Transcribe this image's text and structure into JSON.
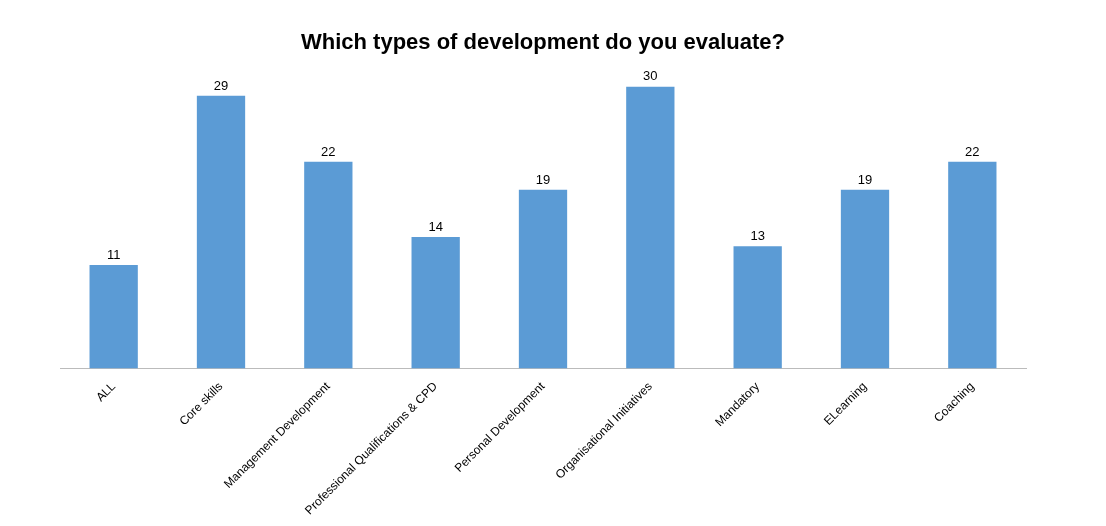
{
  "chart_data": {
    "type": "bar",
    "title": "Which types of development do you evaluate?",
    "categories": [
      "ALL",
      "Core skills",
      "Management Development",
      "Professional Qualifications & CPD",
      "Personal Development",
      "Organisational Initiatives",
      "Mandatory",
      "ELearning",
      "Coaching"
    ],
    "values": [
      11,
      29,
      22,
      14,
      19,
      30,
      13,
      19,
      22
    ],
    "color": "#5b9bd5",
    "data_labels": true
  }
}
